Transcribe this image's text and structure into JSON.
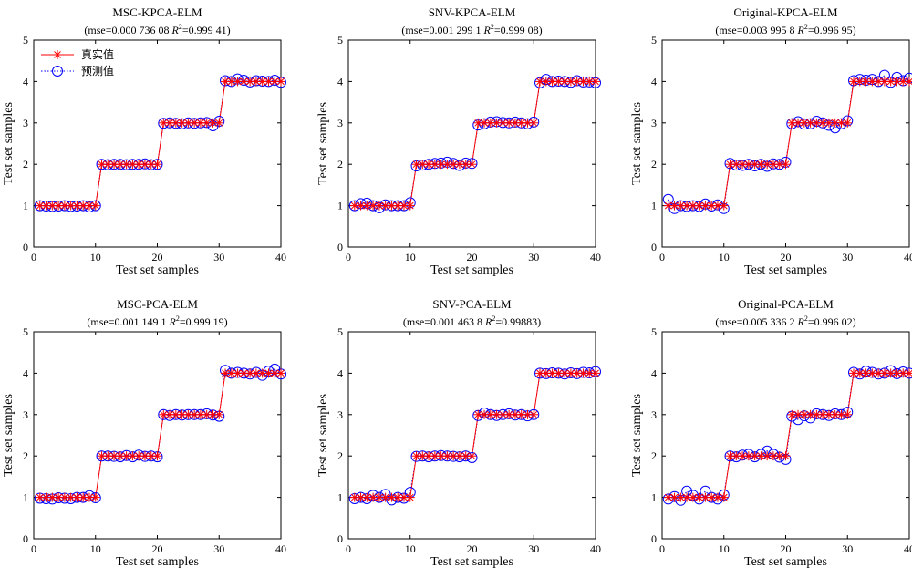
{
  "legend": {
    "actual_label": "真实值",
    "predicted_label": "预测值"
  },
  "colors": {
    "actual": "#ff0000",
    "predicted": "#0000ff"
  },
  "chart_data": [
    {
      "type": "line",
      "title": "MSC-KPCA-ELM",
      "stats": {
        "mse_text": "(mse=0.000 736 08 ",
        "r2_label": "R",
        "r2_text": "=0.999 41)"
      },
      "xlabel": "Test set samples",
      "ylabel": "Test set samples",
      "xlim": [
        0,
        40
      ],
      "ylim": [
        0,
        5
      ],
      "xticks": [
        0,
        10,
        20,
        30,
        40
      ],
      "yticks": [
        0,
        1,
        2,
        3,
        4,
        5
      ],
      "legend_position": "top-left",
      "series": [
        {
          "name": "真实值",
          "values": [
            1,
            1,
            1,
            1,
            1,
            1,
            1,
            1,
            1,
            1,
            2,
            2,
            2,
            2,
            2,
            2,
            2,
            2,
            2,
            2,
            3,
            3,
            3,
            3,
            3,
            3,
            3,
            3,
            3,
            3,
            4,
            4,
            4,
            4,
            4,
            4,
            4,
            4,
            4,
            4
          ]
        },
        {
          "name": "预测值",
          "values": [
            1.0,
            0.99,
            0.98,
            0.99,
            1.0,
            0.98,
            0.99,
            1.0,
            0.97,
            1.0,
            2.0,
            1.99,
            2.0,
            2.0,
            1.99,
            2.0,
            2.0,
            2.01,
            1.99,
            2.0,
            2.99,
            3.0,
            2.99,
            2.98,
            3.0,
            2.99,
            3.0,
            3.01,
            2.93,
            3.04,
            4.02,
            4.0,
            4.06,
            4.03,
            3.99,
            4.02,
            4.01,
            4.0,
            4.03,
            3.98
          ]
        }
      ]
    },
    {
      "type": "line",
      "title": "SNV-KPCA-ELM",
      "stats": {
        "mse_text": "(mse=0.001 299 1 ",
        "r2_label": "R",
        "r2_text": "=0.999 08)"
      },
      "xlabel": "Test set samples",
      "ylabel": "Test set samples",
      "xlim": [
        0,
        40
      ],
      "ylim": [
        0,
        5
      ],
      "xticks": [
        0,
        10,
        20,
        30,
        40
      ],
      "yticks": [
        0,
        1,
        2,
        3,
        4,
        5
      ],
      "series": [
        {
          "name": "真实值",
          "values": [
            1,
            1,
            1,
            1,
            1,
            1,
            1,
            1,
            1,
            1,
            2,
            2,
            2,
            2,
            2,
            2,
            2,
            2,
            2,
            2,
            3,
            3,
            3,
            3,
            3,
            3,
            3,
            3,
            3,
            3,
            4,
            4,
            4,
            4,
            4,
            4,
            4,
            4,
            4,
            4
          ]
        },
        {
          "name": "预测值",
          "values": [
            1.0,
            1.05,
            1.06,
            1.0,
            0.95,
            1.02,
            1.0,
            1.0,
            1.0,
            1.07,
            1.96,
            1.98,
            2.0,
            2.02,
            2.03,
            2.05,
            2.02,
            1.97,
            2.03,
            2.02,
            2.95,
            2.98,
            3.02,
            3.03,
            3.01,
            3.0,
            3.02,
            3.0,
            2.98,
            3.02,
            3.97,
            4.05,
            4.0,
            4.01,
            4.0,
            3.98,
            4.02,
            3.99,
            3.99,
            3.97
          ]
        }
      ]
    },
    {
      "type": "line",
      "title": "Original-KPCA-ELM",
      "stats": {
        "mse_text": "(mse=0.003 995 8 ",
        "r2_label": "R",
        "r2_text": "=0.996 95)"
      },
      "xlabel": "Test set samples",
      "ylabel": "Test set samples",
      "xlim": [
        0,
        40
      ],
      "ylim": [
        0,
        5
      ],
      "xticks": [
        0,
        10,
        20,
        30,
        40
      ],
      "yticks": [
        0,
        1,
        2,
        3,
        4,
        5
      ],
      "series": [
        {
          "name": "真实值",
          "values": [
            1,
            1,
            1,
            1,
            1,
            1,
            1,
            1,
            1,
            1,
            2,
            2,
            2,
            2,
            2,
            2,
            2,
            2,
            2,
            2,
            3,
            3,
            3,
            3,
            3,
            3,
            3,
            3,
            3,
            3,
            4,
            4,
            4,
            4,
            4,
            4,
            4,
            4,
            4,
            4
          ]
        },
        {
          "name": "预测值",
          "values": [
            1.15,
            0.93,
            1.0,
            0.98,
            1.0,
            0.98,
            1.04,
            0.99,
            1.02,
            0.93,
            2.02,
            1.98,
            1.97,
            2.0,
            1.96,
            2.0,
            1.95,
            2.01,
            2.0,
            2.05,
            2.98,
            3.03,
            2.97,
            2.98,
            3.04,
            3.0,
            2.94,
            2.88,
            2.98,
            3.05,
            4.02,
            4.05,
            4.03,
            4.05,
            4.0,
            4.15,
            3.98,
            4.1,
            4.02,
            4.08
          ]
        }
      ]
    },
    {
      "type": "line",
      "title": "MSC-PCA-ELM",
      "stats": {
        "mse_text": "(mse=0.001 149 1 ",
        "r2_label": "R",
        "r2_text": "=0.999 19)"
      },
      "xlabel": "Test set samples",
      "ylabel": "Test set samples",
      "xlim": [
        0,
        40
      ],
      "ylim": [
        0,
        5
      ],
      "xticks": [
        0,
        10,
        20,
        30,
        40
      ],
      "yticks": [
        0,
        1,
        2,
        3,
        4,
        5
      ],
      "series": [
        {
          "name": "真实值",
          "values": [
            1,
            1,
            1,
            1,
            1,
            1,
            1,
            1,
            1,
            1,
            2,
            2,
            2,
            2,
            2,
            2,
            2,
            2,
            2,
            2,
            3,
            3,
            3,
            3,
            3,
            3,
            3,
            3,
            3,
            3,
            4,
            4,
            4,
            4,
            4,
            4,
            4,
            4,
            4,
            4
          ]
        },
        {
          "name": "预测值",
          "values": [
            0.98,
            0.97,
            0.96,
            0.99,
            0.98,
            0.97,
            1.0,
            1.0,
            1.04,
            0.99,
            2.0,
            2.0,
            1.99,
            1.98,
            2.01,
            1.98,
            2.02,
            1.99,
            2.0,
            1.98,
            3.0,
            2.98,
            3.0,
            2.99,
            3.0,
            3.0,
            3.0,
            3.02,
            2.99,
            2.96,
            4.07,
            4.0,
            4.02,
            4.0,
            3.98,
            4.02,
            3.95,
            4.05,
            4.1,
            3.98
          ]
        }
      ]
    },
    {
      "type": "line",
      "title": "SNV-PCA-ELM",
      "stats": {
        "mse_text": "(mse=0.001 463 8 ",
        "r2_label": "R",
        "r2_text": "=0.99883)"
      },
      "xlabel": "Test set samples",
      "ylabel": "Test set samples",
      "xlim": [
        0,
        40
      ],
      "ylim": [
        0,
        5
      ],
      "xticks": [
        0,
        10,
        20,
        30,
        40
      ],
      "yticks": [
        0,
        1,
        2,
        3,
        4,
        5
      ],
      "series": [
        {
          "name": "真实值",
          "values": [
            1,
            1,
            1,
            1,
            1,
            1,
            1,
            1,
            1,
            1,
            2,
            2,
            2,
            2,
            2,
            2,
            2,
            2,
            2,
            2,
            3,
            3,
            3,
            3,
            3,
            3,
            3,
            3,
            3,
            3,
            4,
            4,
            4,
            4,
            4,
            4,
            4,
            4,
            4,
            4
          ]
        },
        {
          "name": "预测值",
          "values": [
            0.97,
            1.0,
            0.97,
            1.05,
            1.0,
            1.07,
            0.94,
            1.0,
            0.98,
            1.12,
            1.99,
            2.0,
            1.98,
            2.0,
            2.01,
            2.0,
            1.99,
            1.98,
            2.0,
            1.96,
            2.98,
            3.04,
            3.0,
            2.98,
            3.0,
            3.02,
            2.99,
            3.0,
            2.97,
            3.0,
            4.0,
            3.99,
            4.01,
            4.0,
            3.98,
            4.01,
            3.99,
            4.02,
            4.01,
            4.04
          ]
        }
      ]
    },
    {
      "type": "line",
      "title": "Original-PCA-ELM",
      "stats": {
        "mse_text": "(mse=0.005 336 2 ",
        "r2_label": "R",
        "r2_text": "=0.996 02)"
      },
      "xlabel": "Test set samples",
      "ylabel": "Test set samples",
      "xlim": [
        0,
        40
      ],
      "ylim": [
        0,
        5
      ],
      "xticks": [
        0,
        10,
        20,
        30,
        40
      ],
      "yticks": [
        0,
        1,
        2,
        3,
        4,
        5
      ],
      "series": [
        {
          "name": "真实值",
          "values": [
            1,
            1,
            1,
            1,
            1,
            1,
            1,
            1,
            1,
            1,
            2,
            2,
            2,
            2,
            2,
            2,
            2,
            2,
            2,
            2,
            3,
            3,
            3,
            3,
            3,
            3,
            3,
            3,
            3,
            3,
            4,
            4,
            4,
            4,
            4,
            4,
            4,
            4,
            4,
            4
          ]
        },
        {
          "name": "预测值",
          "values": [
            0.96,
            1.02,
            0.93,
            1.15,
            1.05,
            0.96,
            1.15,
            1.0,
            0.96,
            1.06,
            2.0,
            1.98,
            2.02,
            2.04,
            1.98,
            2.04,
            2.12,
            2.04,
            1.97,
            1.92,
            2.96,
            2.88,
            2.97,
            2.92,
            3.02,
            3.0,
            2.98,
            3.02,
            3.0,
            3.06,
            4.02,
            3.98,
            4.05,
            4.02,
            3.98,
            4.0,
            4.06,
            3.99,
            4.03,
            4.0
          ]
        }
      ]
    }
  ]
}
